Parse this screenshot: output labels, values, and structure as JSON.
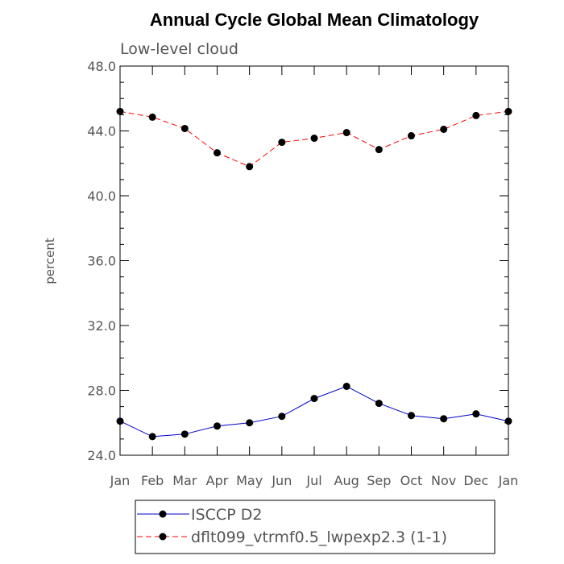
{
  "chart_data": {
    "type": "line",
    "title": "Annual Cycle Global Mean Climatology",
    "subtitle": "Low-level cloud",
    "ylabel": "percent",
    "xlabel": "",
    "categories": [
      "Jan",
      "Feb",
      "Mar",
      "Apr",
      "May",
      "Jun",
      "Jul",
      "Aug",
      "Sep",
      "Oct",
      "Nov",
      "Dec",
      "Jan"
    ],
    "ylim": [
      24.0,
      48.0
    ],
    "yticks": [
      24.0,
      28.0,
      32.0,
      36.0,
      40.0,
      44.0,
      48.0
    ],
    "ytick_labels": [
      "24.0",
      "28.0",
      "32.0",
      "36.0",
      "40.0",
      "44.0",
      "48.0"
    ],
    "grid": false,
    "legend_position": "bottom",
    "series": [
      {
        "name": "ISCCP D2",
        "color": "#0000cc",
        "line_style": "solid",
        "marker": "filled-circle",
        "values": [
          26.1,
          25.15,
          25.3,
          25.8,
          26.0,
          26.4,
          27.5,
          28.25,
          27.2,
          26.45,
          26.25,
          26.55,
          26.1
        ]
      },
      {
        "name": "dflt099_vtrmf0.5_lwpexp2.3 (1-1)",
        "color": "#ff0000",
        "line_style": "dashed",
        "marker": "filled-circle",
        "values": [
          45.2,
          44.85,
          44.15,
          42.65,
          41.8,
          43.3,
          43.55,
          43.9,
          42.85,
          43.7,
          44.1,
          44.95,
          45.2
        ]
      }
    ]
  }
}
